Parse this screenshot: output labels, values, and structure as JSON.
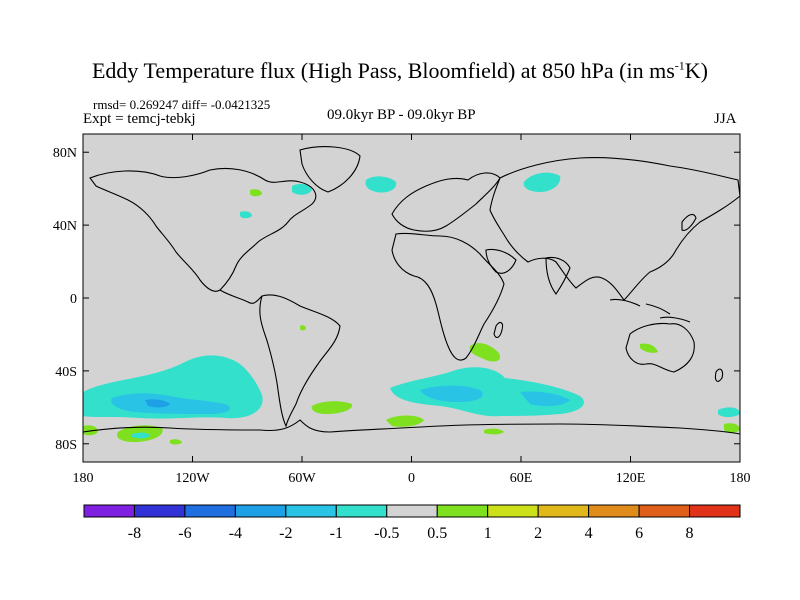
{
  "title": "Eddy Temperature flux (High Pass, Bloomfield) at 850 hPa (in ms",
  "title_sup": "-1",
  "title_end": "K)",
  "stats": "rmsd= 0.269247  diff= -0.0421325",
  "expt": "Expt = temcj-tebkj",
  "period": "09.0kyr BP - 09.0kyr BP",
  "season": "JJA",
  "map": {
    "projection": "cylindrical-equidistant",
    "lon_range": [
      -180,
      180
    ],
    "lat_range": [
      -90,
      90
    ],
    "background_color": "#d3d3d3",
    "x_ticks": [
      {
        "lon": -180,
        "label": "180"
      },
      {
        "lon": -120,
        "label": "120W"
      },
      {
        "lon": -60,
        "label": "60W"
      },
      {
        "lon": 0,
        "label": "0"
      },
      {
        "lon": 60,
        "label": "60E"
      },
      {
        "lon": 120,
        "label": "120E"
      },
      {
        "lon": 180,
        "label": "180"
      }
    ],
    "y_ticks": [
      {
        "lat": 80,
        "label": "80N"
      },
      {
        "lat": 40,
        "label": "40N"
      },
      {
        "lat": 0,
        "label": "0"
      },
      {
        "lat": -40,
        "label": "40S"
      },
      {
        "lat": -80,
        "label": "80S"
      }
    ]
  },
  "colorbar": {
    "colors": [
      "#7f1fe0",
      "#3232d6",
      "#1f6fe0",
      "#1ea0e6",
      "#29c3e6",
      "#33e0cc",
      "#d3d3d3",
      "#7fe01f",
      "#cce01a",
      "#e0b81a",
      "#e08c1a",
      "#e05f1a",
      "#e0331a"
    ],
    "labels": [
      "-8",
      "-6",
      "-4",
      "-2",
      "-1",
      "-0.5",
      "0.5",
      "1",
      "2",
      "4",
      "6",
      "8"
    ]
  }
}
